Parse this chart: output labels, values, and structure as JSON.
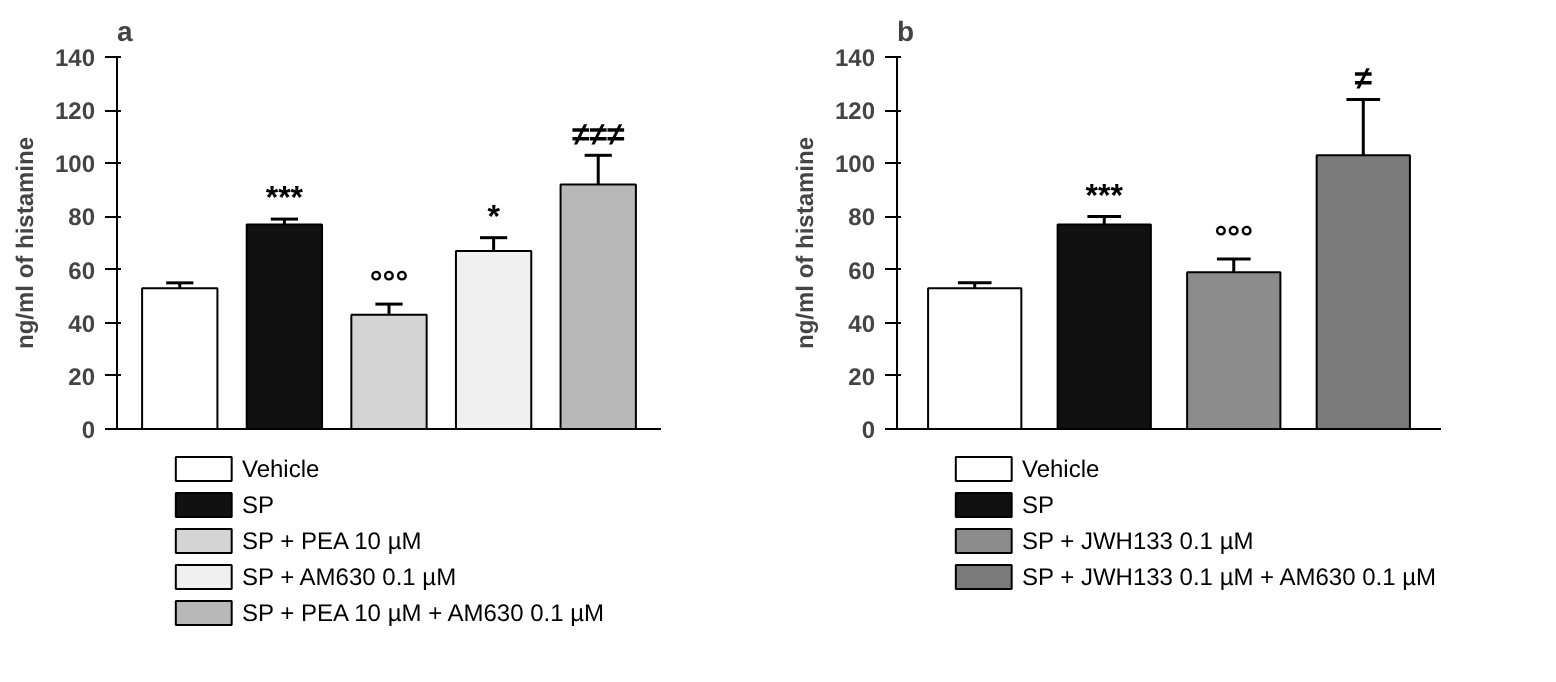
{
  "chart_data": [
    {
      "type": "bar",
      "title": "a",
      "ylabel": "ng/ml of histamine",
      "categories": [
        null,
        null,
        null,
        null,
        null
      ],
      "ylim": [
        0,
        140
      ],
      "yticks": [
        0,
        20,
        40,
        60,
        80,
        100,
        120,
        140
      ],
      "tick_labels": "y",
      "legend": "bottom",
      "series": [
        {
          "name": "Vehicle",
          "color": "#ffffff",
          "values": [
            53,
            null,
            null,
            null,
            null
          ],
          "errors": [
            [
              53,
              55
            ],
            null,
            null,
            null,
            null
          ]
        },
        {
          "name": "SP",
          "color": "#111111",
          "values": [
            null,
            77,
            null,
            null,
            null
          ],
          "errors": [
            null,
            [
              77,
              79
            ],
            null,
            null,
            null
          ],
          "value_labels": [
            null,
            "***",
            null,
            null,
            null
          ]
        },
        {
          "name": "SP + PEA 10 µM",
          "color": "#d4d4d4",
          "values": [
            null,
            null,
            43,
            null,
            null
          ],
          "errors": [
            null,
            null,
            [
              43,
              47
            ],
            null,
            null
          ],
          "value_labels": [
            null,
            null,
            "°°°",
            null,
            null
          ]
        },
        {
          "name": "SP + AM630 0.1 µM",
          "color": "#f0f0f0",
          "values": [
            null,
            null,
            null,
            67,
            null
          ],
          "errors": [
            null,
            null,
            null,
            [
              67,
              72
            ],
            null
          ],
          "value_labels": [
            null,
            null,
            null,
            "*",
            null
          ]
        },
        {
          "name": "SP + PEA 10 µM + AM630 0.1 µM",
          "color": "#b8b8b8",
          "values": [
            null,
            null,
            null,
            null,
            92
          ],
          "errors": [
            null,
            null,
            null,
            null,
            [
              92,
              103
            ]
          ],
          "value_labels": [
            null,
            null,
            null,
            null,
            "≠≠≠"
          ]
        }
      ]
    },
    {
      "type": "bar",
      "title": "b",
      "ylabel": "ng/ml of histamine",
      "categories": [
        null,
        null,
        null,
        null
      ],
      "ylim": [
        0,
        140
      ],
      "yticks": [
        0,
        20,
        40,
        60,
        80,
        100,
        120,
        140
      ],
      "tick_labels": "y",
      "legend": "bottom",
      "series": [
        {
          "name": "Vehicle",
          "color": "#ffffff",
          "values": [
            53,
            null,
            null,
            null
          ],
          "errors": [
            [
              53,
              55
            ],
            null,
            null,
            null
          ]
        },
        {
          "name": "SP",
          "color": "#111111",
          "values": [
            null,
            77,
            null,
            null
          ],
          "errors": [
            null,
            [
              77,
              80
            ],
            null,
            null
          ],
          "value_labels": [
            null,
            "***",
            null,
            null
          ]
        },
        {
          "name": "SP + JWH133 0.1 µM",
          "color": "#8c8c8c",
          "values": [
            null,
            null,
            59,
            null
          ],
          "errors": [
            null,
            null,
            [
              59,
              64
            ],
            null
          ],
          "value_labels": [
            null,
            null,
            "°°°",
            null
          ]
        },
        {
          "name": "SP + JWH133 0.1 µM + AM630 0.1 µM",
          "color": "#7a7a7a",
          "values": [
            null,
            null,
            null,
            103
          ],
          "errors": [
            null,
            null,
            null,
            [
              103,
              124
            ]
          ],
          "value_labels": [
            null,
            null,
            null,
            "≠"
          ]
        }
      ]
    }
  ]
}
